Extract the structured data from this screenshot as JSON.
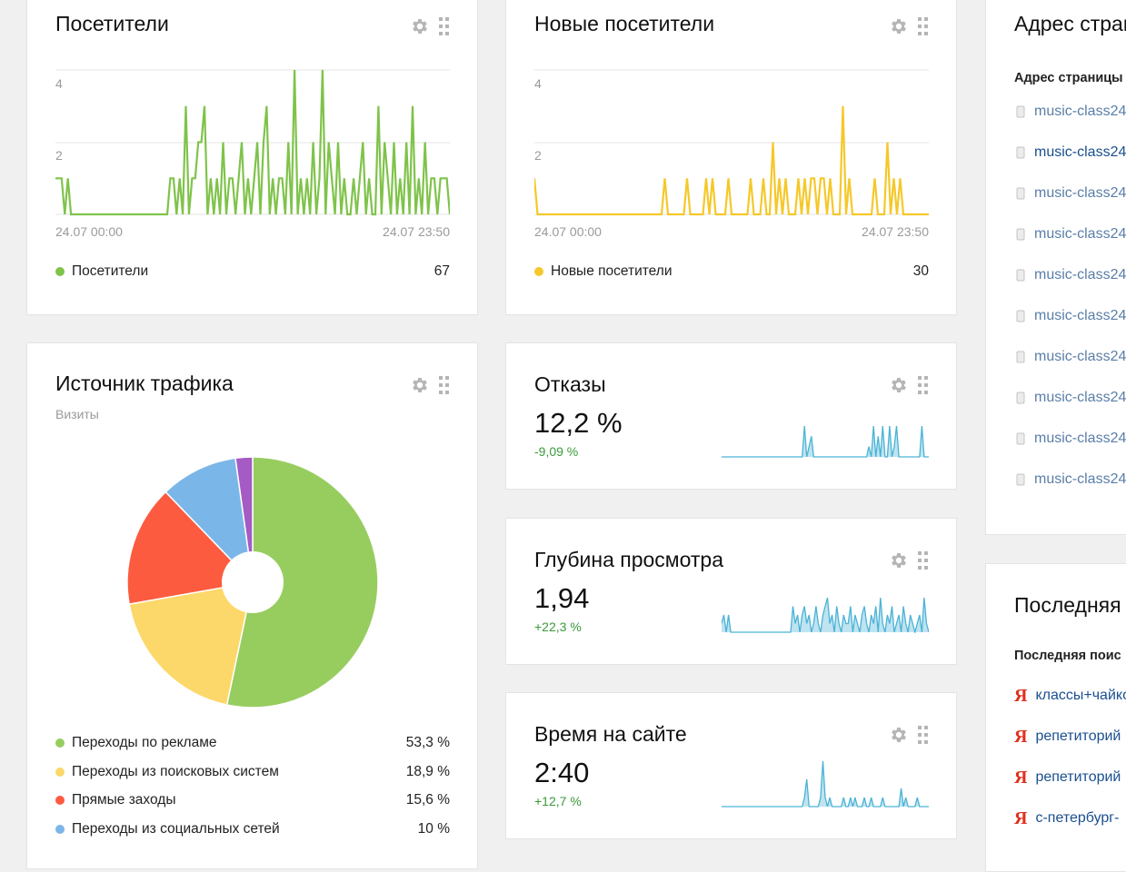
{
  "visitors": {
    "title": "Посетители",
    "y_ticks": [
      "4",
      "2"
    ],
    "x_start": "24.07 00:00",
    "x_end": "24.07 23:50",
    "legend_label": "Посетители",
    "legend_value": "67",
    "color": "#7fc34a"
  },
  "new_visitors": {
    "title": "Новые посетители",
    "y_ticks": [
      "4",
      "2"
    ],
    "x_start": "24.07 00:00",
    "x_end": "24.07 23:50",
    "legend_label": "Новые посетители",
    "legend_value": "30",
    "color": "#f5c82a"
  },
  "traffic": {
    "title": "Источник трафика",
    "subtitle": "Визиты"
  },
  "bounces": {
    "title": "Отказы",
    "value": "12,2 %",
    "delta": "-9,09 %"
  },
  "depth": {
    "title": "Глубина просмотра",
    "value": "1,94",
    "delta": "+22,3 %"
  },
  "time_on_site": {
    "title": "Время на сайте",
    "value": "2:40",
    "delta": "+12,7 %"
  },
  "pages": {
    "title": "Адрес стран",
    "column_header": "Адрес страницы",
    "items": [
      "music-class24",
      "music-class24",
      "music-class24",
      "music-class24",
      "music-class24",
      "music-class24",
      "music-class24",
      "music-class24",
      "music-class24",
      "music-class24"
    ]
  },
  "search": {
    "title": "Последняя п",
    "column_header": "Последняя поис",
    "items": [
      "классы+чайко",
      "репетиторий",
      "репетиторий",
      "с-петербург-"
    ]
  },
  "chart_data": [
    {
      "type": "line",
      "title": "Посетители",
      "x_range": [
        "24.07 00:00",
        "24.07 23:50"
      ],
      "ylim": [
        0,
        4
      ],
      "series": [
        {
          "name": "Посетители",
          "total": 67,
          "color": "#7fc34a",
          "values": [
            1,
            1,
            1,
            0,
            1,
            0,
            0,
            0,
            0,
            0,
            0,
            0,
            0,
            0,
            0,
            0,
            0,
            0,
            0,
            0,
            0,
            0,
            0,
            0,
            0,
            0,
            0,
            0,
            0,
            0,
            0,
            0,
            0,
            0,
            0,
            0,
            0,
            1,
            1,
            0,
            1,
            0,
            3,
            0,
            1,
            1,
            2,
            2,
            3,
            0,
            1,
            0,
            1,
            0,
            2,
            0,
            1,
            1,
            0,
            1,
            2,
            0,
            1,
            0,
            1,
            2,
            0,
            2,
            3,
            0,
            1,
            0,
            1,
            1,
            0,
            2,
            0,
            4,
            0,
            1,
            0,
            1,
            0,
            2,
            0,
            1,
            4,
            0,
            2,
            1,
            0,
            2,
            0,
            1,
            0,
            0,
            1,
            0,
            1,
            2,
            0,
            1,
            0,
            0,
            3,
            0,
            2,
            1,
            0,
            2,
            0,
            1,
            0,
            2,
            0,
            3,
            0,
            1,
            0,
            2,
            0,
            1,
            1,
            0,
            1,
            1,
            1,
            0
          ]
        }
      ]
    },
    {
      "type": "line",
      "title": "Новые посетители",
      "x_range": [
        "24.07 00:00",
        "24.07 23:50"
      ],
      "ylim": [
        0,
        4
      ],
      "series": [
        {
          "name": "Новые посетители",
          "total": 30,
          "color": "#f5c82a",
          "values": [
            1,
            0,
            0,
            0,
            0,
            0,
            0,
            0,
            0,
            0,
            0,
            0,
            0,
            0,
            0,
            0,
            0,
            0,
            0,
            0,
            0,
            0,
            0,
            0,
            0,
            0,
            0,
            0,
            0,
            0,
            0,
            0,
            0,
            0,
            0,
            0,
            0,
            0,
            0,
            0,
            0,
            1,
            0,
            0,
            0,
            0,
            0,
            0,
            1,
            0,
            0,
            0,
            0,
            0,
            1,
            0,
            1,
            0,
            0,
            0,
            0,
            1,
            0,
            0,
            0,
            0,
            0,
            0,
            1,
            0,
            0,
            0,
            1,
            0,
            0,
            2,
            0,
            1,
            0,
            1,
            0,
            0,
            0,
            1,
            0,
            1,
            0,
            1,
            1,
            0,
            1,
            1,
            0,
            1,
            0,
            0,
            0,
            3,
            0,
            1,
            0,
            0,
            0,
            0,
            0,
            0,
            0,
            1,
            0,
            0,
            0,
            2,
            0,
            1,
            0,
            1,
            0,
            0,
            0,
            0,
            0,
            0,
            0,
            0,
            0
          ]
        }
      ]
    },
    {
      "type": "pie",
      "title": "Источник трафика",
      "subtitle": "Визиты",
      "slices": [
        {
          "label": "Переходы по рекламе",
          "value": 53.3,
          "display": "53,3 %",
          "color": "#97cd5f"
        },
        {
          "label": "Переходы из поисковых систем",
          "value": 18.9,
          "display": "18,9 %",
          "color": "#fcd86a"
        },
        {
          "label": "Прямые заходы",
          "value": 15.6,
          "display": "15,6 %",
          "color": "#fc5b3f"
        },
        {
          "label": "Переходы из социальных сетей",
          "value": 10,
          "display": "10 %",
          "color": "#7bb6e8"
        },
        {
          "label": "",
          "value": 2.2,
          "display": "",
          "color": "#a45cc4"
        }
      ]
    },
    {
      "type": "area",
      "title": "Отказы",
      "color": "#4ab3d6",
      "values": [
        0,
        0,
        0,
        0,
        0,
        0,
        0,
        0,
        0,
        0,
        0,
        0,
        0,
        0,
        0,
        0,
        0,
        0,
        0,
        0,
        0,
        0,
        0,
        0,
        0,
        0,
        0,
        0,
        0,
        0,
        0,
        0,
        0,
        0,
        0,
        0,
        3,
        0,
        1,
        2,
        0,
        0,
        0,
        0,
        0,
        0,
        0,
        0,
        0,
        0,
        0,
        0,
        0,
        0,
        0,
        0,
        0,
        0,
        0,
        0,
        0,
        0,
        0,
        0,
        1,
        0,
        3,
        0,
        2,
        0,
        3,
        0,
        0,
        3,
        0,
        1,
        3,
        0,
        0,
        0,
        0,
        0,
        0,
        0,
        0,
        0,
        0,
        3,
        0,
        0,
        0
      ]
    },
    {
      "type": "area",
      "title": "Глубина просмотра",
      "color": "#4ab3d6",
      "values": [
        1,
        2,
        0,
        2,
        0,
        0,
        0,
        0,
        0,
        0,
        0,
        0,
        0,
        0,
        0,
        0,
        0,
        0,
        0,
        0,
        0,
        0,
        0,
        0,
        0,
        0,
        0,
        0,
        0,
        0,
        0,
        3,
        1,
        2,
        0,
        2,
        3,
        1,
        2,
        0,
        1,
        3,
        1,
        0,
        2,
        3,
        4,
        1,
        2,
        0,
        3,
        1,
        0,
        2,
        1,
        1,
        3,
        0,
        2,
        1,
        0,
        2,
        3,
        1,
        0,
        2,
        1,
        3,
        0,
        4,
        1,
        0,
        2,
        1,
        3,
        0,
        1,
        2,
        0,
        3,
        1,
        0,
        2,
        1,
        0,
        1,
        2,
        0,
        4,
        1,
        0
      ]
    },
    {
      "type": "area",
      "title": "Время на сайте",
      "color": "#4ab3d6",
      "values": [
        0,
        0,
        0,
        0,
        0,
        0,
        0,
        0,
        0,
        0,
        0,
        0,
        0,
        0,
        0,
        0,
        0,
        0,
        0,
        0,
        0,
        0,
        0,
        0,
        0,
        0,
        0,
        0,
        0,
        0,
        0,
        0,
        0,
        0,
        0,
        0,
        1,
        3,
        0,
        0,
        0,
        0,
        0,
        1,
        5,
        1,
        0,
        1,
        0,
        0,
        0,
        0,
        0,
        1,
        0,
        0,
        1,
        0,
        1,
        0,
        0,
        0,
        1,
        0,
        0,
        1,
        0,
        0,
        0,
        0,
        1,
        0,
        0,
        0,
        0,
        0,
        0,
        0,
        2,
        0,
        1,
        0,
        0,
        0,
        0,
        1,
        0,
        0,
        0,
        0,
        0
      ]
    }
  ]
}
